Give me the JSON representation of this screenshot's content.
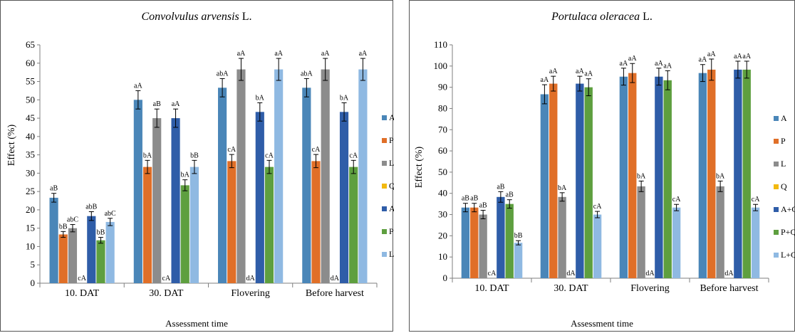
{
  "legend_colors": {
    "A": "#4a86b8",
    "P": "#e06f28",
    "L": "#8c8c8c",
    "Q": "#f2b90f",
    "A+Q": "#2f5da8",
    "P+Q": "#5e9f3f",
    "L+Q": "#8fb9e2"
  },
  "chart_data": [
    {
      "type": "bar",
      "title_species": "Convolvulus arvensis",
      "title_author": " L.",
      "xlabel": "Assessment time",
      "ylabel": "Effect (%)",
      "ylim": [
        0,
        65
      ],
      "yticks": [
        0,
        5,
        10,
        15,
        20,
        25,
        30,
        35,
        40,
        45,
        50,
        55,
        60,
        65
      ],
      "grid": false,
      "legend_position": "right",
      "categories": [
        "10. DAT",
        "30. DAT",
        "Flovering",
        "Before harvest"
      ],
      "series": [
        {
          "name": "A",
          "values": [
            23.3,
            50.0,
            53.3,
            53.3
          ],
          "labels": [
            "aB",
            "aA",
            "abA",
            "abA"
          ]
        },
        {
          "name": "P",
          "values": [
            13.3,
            31.7,
            33.3,
            33.3
          ],
          "labels": [
            "bB",
            "bA",
            "cA",
            "cA"
          ]
        },
        {
          "name": "L",
          "values": [
            15.0,
            45.0,
            58.3,
            58.3
          ],
          "labels": [
            "abC",
            "aB",
            "aA",
            "aA"
          ]
        },
        {
          "name": "Q",
          "values": [
            0,
            0,
            0,
            0
          ],
          "labels": [
            "cA",
            "cA",
            "dA",
            "dA"
          ]
        },
        {
          "name": "A+Q",
          "values": [
            18.3,
            45.0,
            46.7,
            46.7
          ],
          "labels": [
            "abB",
            "aA",
            "bA",
            "bA"
          ]
        },
        {
          "name": "P+Q",
          "values": [
            11.7,
            26.7,
            31.7,
            31.7
          ],
          "labels": [
            "bB",
            "bA",
            "cA",
            "cA"
          ]
        },
        {
          "name": "L+Q",
          "values": [
            16.7,
            31.7,
            58.3,
            58.3
          ],
          "labels": [
            "abC",
            "bB",
            "aA",
            "aA"
          ]
        }
      ],
      "errors": [
        [
          1.2,
          2.5,
          2.5,
          2.5
        ],
        [
          0.8,
          1.8,
          1.8,
          1.8
        ],
        [
          1.0,
          2.5,
          3.0,
          3.0
        ],
        [
          0,
          0,
          0,
          0
        ],
        [
          1.2,
          2.5,
          2.5,
          2.5
        ],
        [
          0.8,
          1.5,
          1.8,
          1.8
        ],
        [
          1.0,
          1.8,
          3.0,
          3.0
        ]
      ]
    },
    {
      "type": "bar",
      "title_species": "Portulaca oleracea",
      "title_author": " L.",
      "xlabel": "Assessment time",
      "ylabel": "Effect (%)",
      "ylim": [
        0,
        110
      ],
      "yticks": [
        0,
        10,
        20,
        30,
        40,
        50,
        60,
        70,
        80,
        90,
        100,
        110
      ],
      "grid": false,
      "legend_position": "right",
      "categories": [
        "10. DAT",
        "30. DAT",
        "Flovering",
        "Before harvest"
      ],
      "series": [
        {
          "name": "A",
          "values": [
            33.3,
            86.7,
            95.0,
            96.7
          ],
          "labels": [
            "aB",
            "aA",
            "aA",
            "aA"
          ]
        },
        {
          "name": "P",
          "values": [
            33.3,
            91.7,
            96.7,
            98.3
          ],
          "labels": [
            "aB",
            "aA",
            "aA",
            "aA"
          ]
        },
        {
          "name": "L",
          "values": [
            30.0,
            38.3,
            43.3,
            43.3
          ],
          "labels": [
            "aB",
            "bA",
            "bA",
            "bA"
          ]
        },
        {
          "name": "Q",
          "values": [
            0,
            0,
            0,
            0
          ],
          "labels": [
            "cA",
            "dA",
            "dA",
            "dA"
          ]
        },
        {
          "name": "A+Q",
          "values": [
            38.3,
            91.7,
            95.0,
            98.3
          ],
          "labels": [
            "aB",
            "aA",
            "aA",
            "aA"
          ]
        },
        {
          "name": "P+Q",
          "values": [
            35.0,
            90.0,
            93.3,
            98.3
          ],
          "labels": [
            "aB",
            "aA",
            "aA",
            "aA"
          ]
        },
        {
          "name": "L+Q",
          "values": [
            16.7,
            30.0,
            33.3,
            33.3
          ],
          "labels": [
            "bB",
            "cA",
            "cA",
            "cA"
          ]
        }
      ],
      "errors": [
        [
          2.0,
          4.5,
          4.0,
          4.0
        ],
        [
          2.0,
          3.5,
          4.5,
          5.0
        ],
        [
          2.0,
          2.0,
          2.5,
          2.5
        ],
        [
          0,
          0,
          0,
          0
        ],
        [
          2.5,
          3.5,
          4.0,
          4.0
        ],
        [
          2.0,
          4.0,
          4.5,
          4.0
        ],
        [
          1.0,
          1.5,
          1.5,
          1.5
        ]
      ]
    }
  ]
}
